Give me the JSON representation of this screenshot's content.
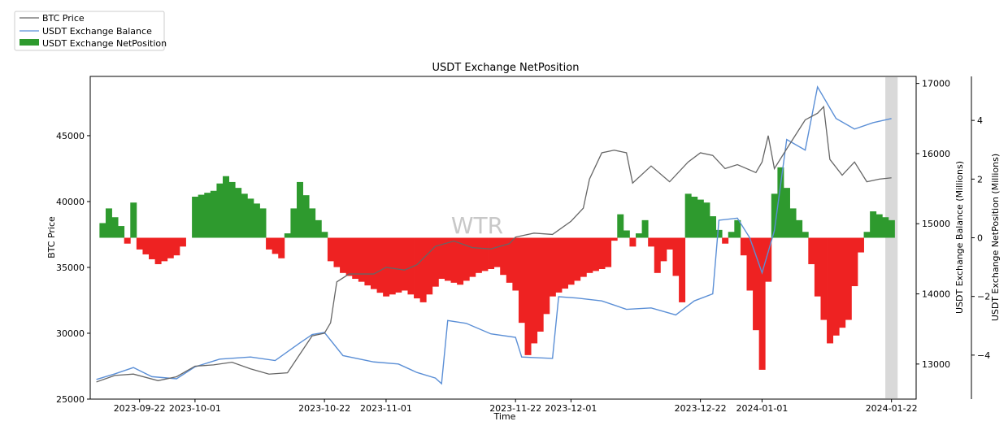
{
  "chart_data": {
    "type": "line",
    "title": "USDT Exchange NetPosition",
    "watermark": "WTR",
    "xlabel": "Time",
    "y_left_label": "BTC Price",
    "y_right_label": "USDT Exchange Balance (Millions)",
    "y_right2_label": "USDT Exchange NetPosition (Millions)",
    "x_ticks": [
      "2023-09-22",
      "2023-10-01",
      "2023-10-22",
      "2023-11-01",
      "2023-11-22",
      "2023-12-01",
      "2023-12-22",
      "2024-01-01",
      "2024-01-22"
    ],
    "x_range": [
      "2023-09-14",
      "2024-01-26"
    ],
    "y_left_ticks": [
      "25000",
      "30000",
      "35000",
      "40000",
      "45000"
    ],
    "y_left_range": [
      25000,
      49500
    ],
    "y_right_ticks": [
      "13000",
      "14000",
      "15000",
      "16000",
      "17000"
    ],
    "y_right_range": [
      12500,
      17100
    ],
    "y_right2_ticks": [
      "−4",
      "−2",
      "0",
      "2",
      "4"
    ],
    "y_right2_range": [
      -5.5,
      5.5
    ],
    "highlight_span": [
      "2024-01-21",
      "2024-01-23"
    ],
    "legend": {
      "placement": "top-left outside",
      "entries": [
        "BTC Price",
        "USDT Exchange Balance",
        "USDT Exchange NetPosition"
      ]
    },
    "colors": {
      "btc": "#666666",
      "balance": "#5b8fd6",
      "net_pos": "#2e9a2e",
      "net_neg": "#ee2222",
      "highlight": "#d9d9d9"
    },
    "series": [
      {
        "name": "BTC Price",
        "axis": "left",
        "points": [
          [
            "2023-09-15",
            26300
          ],
          [
            "2023-09-18",
            26800
          ],
          [
            "2023-09-21",
            26900
          ],
          [
            "2023-09-25",
            26400
          ],
          [
            "2023-09-28",
            26700
          ],
          [
            "2023-10-01",
            27500
          ],
          [
            "2023-10-04",
            27600
          ],
          [
            "2023-10-07",
            27800
          ],
          [
            "2023-10-10",
            27300
          ],
          [
            "2023-10-13",
            26900
          ],
          [
            "2023-10-16",
            27000
          ],
          [
            "2023-10-18",
            28400
          ],
          [
            "2023-10-20",
            29800
          ],
          [
            "2023-10-22",
            30000
          ],
          [
            "2023-10-23",
            30800
          ],
          [
            "2023-10-24",
            33900
          ],
          [
            "2023-10-26",
            34500
          ],
          [
            "2023-10-30",
            34500
          ],
          [
            "2023-11-01",
            35000
          ],
          [
            "2023-11-04",
            34800
          ],
          [
            "2023-11-06",
            35200
          ],
          [
            "2023-11-09",
            36600
          ],
          [
            "2023-11-12",
            37000
          ],
          [
            "2023-11-15",
            36500
          ],
          [
            "2023-11-18",
            36400
          ],
          [
            "2023-11-21",
            36800
          ],
          [
            "2023-11-22",
            37300
          ],
          [
            "2023-11-25",
            37600
          ],
          [
            "2023-11-28",
            37500
          ],
          [
            "2023-12-01",
            38500
          ],
          [
            "2023-12-03",
            39500
          ],
          [
            "2023-12-04",
            41700
          ],
          [
            "2023-12-06",
            43700
          ],
          [
            "2023-12-08",
            43900
          ],
          [
            "2023-12-10",
            43700
          ],
          [
            "2023-12-11",
            41400
          ],
          [
            "2023-12-14",
            42700
          ],
          [
            "2023-12-17",
            41500
          ],
          [
            "2023-12-20",
            43000
          ],
          [
            "2023-12-22",
            43700
          ],
          [
            "2023-12-24",
            43500
          ],
          [
            "2023-12-26",
            42500
          ],
          [
            "2023-12-28",
            42800
          ],
          [
            "2023-12-31",
            42200
          ],
          [
            "2024-01-01",
            43000
          ],
          [
            "2024-01-02",
            45000
          ],
          [
            "2024-01-03",
            42500
          ],
          [
            "2024-01-05",
            44000
          ],
          [
            "2024-01-08",
            46200
          ],
          [
            "2024-01-10",
            46700
          ],
          [
            "2024-01-11",
            47200
          ],
          [
            "2024-01-12",
            43200
          ],
          [
            "2024-01-14",
            42000
          ],
          [
            "2024-01-16",
            43000
          ],
          [
            "2024-01-18",
            41500
          ],
          [
            "2024-01-20",
            41700
          ],
          [
            "2024-01-22",
            41800
          ]
        ]
      },
      {
        "name": "USDT Exchange Balance",
        "axis": "right",
        "points": [
          [
            "2023-09-15",
            12780
          ],
          [
            "2023-09-18",
            12860
          ],
          [
            "2023-09-21",
            12950
          ],
          [
            "2023-09-24",
            12820
          ],
          [
            "2023-09-28",
            12790
          ],
          [
            "2023-10-01",
            12960
          ],
          [
            "2023-10-05",
            13070
          ],
          [
            "2023-10-10",
            13100
          ],
          [
            "2023-10-14",
            13050
          ],
          [
            "2023-10-18",
            13300
          ],
          [
            "2023-10-20",
            13420
          ],
          [
            "2023-10-22",
            13450
          ],
          [
            "2023-10-25",
            13120
          ],
          [
            "2023-10-30",
            13030
          ],
          [
            "2023-11-03",
            13000
          ],
          [
            "2023-11-06",
            12880
          ],
          [
            "2023-11-09",
            12800
          ],
          [
            "2023-11-10",
            12720
          ],
          [
            "2023-11-11",
            13620
          ],
          [
            "2023-11-14",
            13580
          ],
          [
            "2023-11-18",
            13430
          ],
          [
            "2023-11-22",
            13380
          ],
          [
            "2023-11-23",
            13100
          ],
          [
            "2023-11-28",
            13080
          ],
          [
            "2023-11-29",
            13960
          ],
          [
            "2023-12-02",
            13940
          ],
          [
            "2023-12-06",
            13900
          ],
          [
            "2023-12-10",
            13780
          ],
          [
            "2023-12-14",
            13800
          ],
          [
            "2023-12-18",
            13700
          ],
          [
            "2023-12-21",
            13900
          ],
          [
            "2023-12-24",
            14000
          ],
          [
            "2023-12-25",
            15050
          ],
          [
            "2023-12-28",
            15080
          ],
          [
            "2023-12-30",
            14800
          ],
          [
            "2024-01-01",
            14300
          ],
          [
            "2024-01-03",
            14900
          ],
          [
            "2024-01-05",
            16200
          ],
          [
            "2024-01-08",
            16050
          ],
          [
            "2024-01-10",
            16950
          ],
          [
            "2024-01-13",
            16500
          ],
          [
            "2024-01-16",
            16350
          ],
          [
            "2024-01-19",
            16440
          ],
          [
            "2024-01-22",
            16500
          ]
        ]
      },
      {
        "name": "USDT Exchange NetPosition",
        "axis": "right2",
        "points": [
          [
            "2023-09-15",
            0.0
          ],
          [
            "2023-09-17",
            1.0
          ],
          [
            "2023-09-19",
            0.4
          ],
          [
            "2023-09-20",
            -0.2
          ],
          [
            "2023-09-21",
            1.2
          ],
          [
            "2023-09-22",
            -0.4
          ],
          [
            "2023-09-25",
            -0.9
          ],
          [
            "2023-09-28",
            -0.6
          ],
          [
            "2023-09-30",
            0.0
          ],
          [
            "2023-10-01",
            1.4
          ],
          [
            "2023-10-04",
            1.6
          ],
          [
            "2023-10-06",
            2.1
          ],
          [
            "2023-10-09",
            1.5
          ],
          [
            "2023-10-12",
            1.0
          ],
          [
            "2023-10-13",
            -0.4
          ],
          [
            "2023-10-15",
            -0.7
          ],
          [
            "2023-10-17",
            1.0
          ],
          [
            "2023-10-18",
            1.9
          ],
          [
            "2023-10-20",
            1.0
          ],
          [
            "2023-10-22",
            0.2
          ],
          [
            "2023-10-23",
            -0.8
          ],
          [
            "2023-10-25",
            -1.2
          ],
          [
            "2023-10-28",
            -1.5
          ],
          [
            "2023-11-01",
            -2.0
          ],
          [
            "2023-11-04",
            -1.8
          ],
          [
            "2023-11-07",
            -2.2
          ],
          [
            "2023-11-10",
            -1.4
          ],
          [
            "2023-11-13",
            -1.6
          ],
          [
            "2023-11-16",
            -1.2
          ],
          [
            "2023-11-19",
            -1.0
          ],
          [
            "2023-11-22",
            -1.8
          ],
          [
            "2023-11-24",
            -4.0
          ],
          [
            "2023-11-26",
            -3.2
          ],
          [
            "2023-11-28",
            -2.0
          ],
          [
            "2023-12-01",
            -1.6
          ],
          [
            "2023-12-04",
            -1.2
          ],
          [
            "2023-12-07",
            -1.0
          ],
          [
            "2023-12-09",
            0.8
          ],
          [
            "2023-12-11",
            -0.3
          ],
          [
            "2023-12-13",
            0.6
          ],
          [
            "2023-12-15",
            -1.2
          ],
          [
            "2023-12-17",
            -0.4
          ],
          [
            "2023-12-19",
            -2.2
          ],
          [
            "2023-12-20",
            1.5
          ],
          [
            "2023-12-23",
            1.2
          ],
          [
            "2023-12-26",
            -0.2
          ],
          [
            "2023-12-28",
            0.6
          ],
          [
            "2023-12-30",
            -1.8
          ],
          [
            "2024-01-01",
            -4.5
          ],
          [
            "2024-01-03",
            1.5
          ],
          [
            "2024-01-04",
            2.4
          ],
          [
            "2024-01-06",
            1.0
          ],
          [
            "2024-01-08",
            0.2
          ],
          [
            "2024-01-10",
            -2.0
          ],
          [
            "2024-01-12",
            -3.6
          ],
          [
            "2024-01-15",
            -2.8
          ],
          [
            "2024-01-17",
            -0.5
          ],
          [
            "2024-01-19",
            0.9
          ],
          [
            "2024-01-22",
            0.6
          ]
        ]
      }
    ]
  }
}
